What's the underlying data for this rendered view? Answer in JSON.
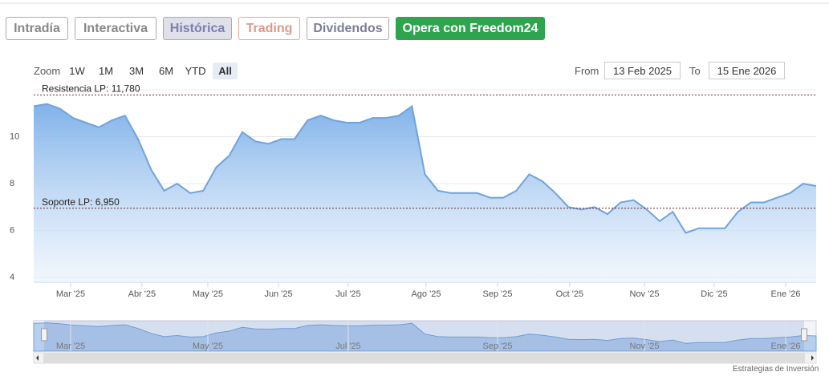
{
  "ui": {
    "tabs": [
      "Intradía",
      "Interactiva",
      "Histórica",
      "Trading",
      "Dividendos",
      "Opera con Freedom24"
    ],
    "zoom_label": "Zoom",
    "zoom_buttons": [
      "1W",
      "1M",
      "3M",
      "6M",
      "YTD",
      "All"
    ],
    "from_label": "From",
    "from_value": "13 Feb 2025",
    "to_label": "To",
    "to_value": "15 Ene 2026",
    "credits": "Estrategias de Inversión"
  },
  "chart_data": {
    "type": "area",
    "color": "#6fa3de",
    "grid": true,
    "values": [
      11.3,
      11.4,
      11.2,
      10.8,
      10.6,
      10.4,
      10.7,
      10.9,
      9.9,
      8.6,
      7.7,
      8.0,
      7.6,
      7.7,
      8.7,
      9.2,
      10.2,
      9.8,
      9.7,
      9.9,
      9.9,
      10.7,
      10.9,
      10.7,
      10.6,
      10.6,
      10.8,
      10.8,
      10.9,
      11.3,
      8.4,
      7.7,
      7.6,
      7.6,
      7.6,
      7.4,
      7.4,
      7.7,
      8.4,
      8.1,
      7.6,
      7.0,
      6.9,
      7.0,
      6.7,
      7.2,
      7.3,
      6.9,
      6.4,
      6.8,
      5.9,
      6.1,
      6.1,
      6.1,
      6.8,
      7.2,
      7.2,
      7.4,
      7.6,
      8.0,
      7.9
    ],
    "xlim": [
      0,
      60
    ],
    "xticks": [
      {
        "value": 2.83,
        "label": "Mar '25"
      },
      {
        "value": 8.3,
        "label": "Abr '25"
      },
      {
        "value": 13.35,
        "label": "May '25"
      },
      {
        "value": 18.77,
        "label": "Jun '25"
      },
      {
        "value": 24.12,
        "label": "Jul '25"
      },
      {
        "value": 30.09,
        "label": "Ago '25"
      },
      {
        "value": 35.57,
        "label": "Sep '25"
      },
      {
        "value": 41.1,
        "label": "Oct '25"
      },
      {
        "value": 46.83,
        "label": "Nov '25"
      },
      {
        "value": 52.18,
        "label": "Dic '25"
      },
      {
        "value": 57.66,
        "label": "Ene '26"
      }
    ],
    "navigator_ticks": [
      {
        "value": 2.83,
        "label": "Mar '25"
      },
      {
        "value": 13.35,
        "label": "May '25"
      },
      {
        "value": 24.12,
        "label": "Jul '25"
      },
      {
        "value": 35.57,
        "label": "Sep '25"
      },
      {
        "value": 46.83,
        "label": "Nov '25"
      },
      {
        "value": 57.66,
        "label": "Ene '26"
      }
    ],
    "ylim": [
      3.8,
      12
    ],
    "yticks": [
      4,
      6,
      8,
      10
    ],
    "plot_lines": [
      {
        "value": 11.78,
        "label": "Resistencia LP: 11,780"
      },
      {
        "value": 6.95,
        "label": "Soporte LP: 6,950"
      }
    ]
  }
}
